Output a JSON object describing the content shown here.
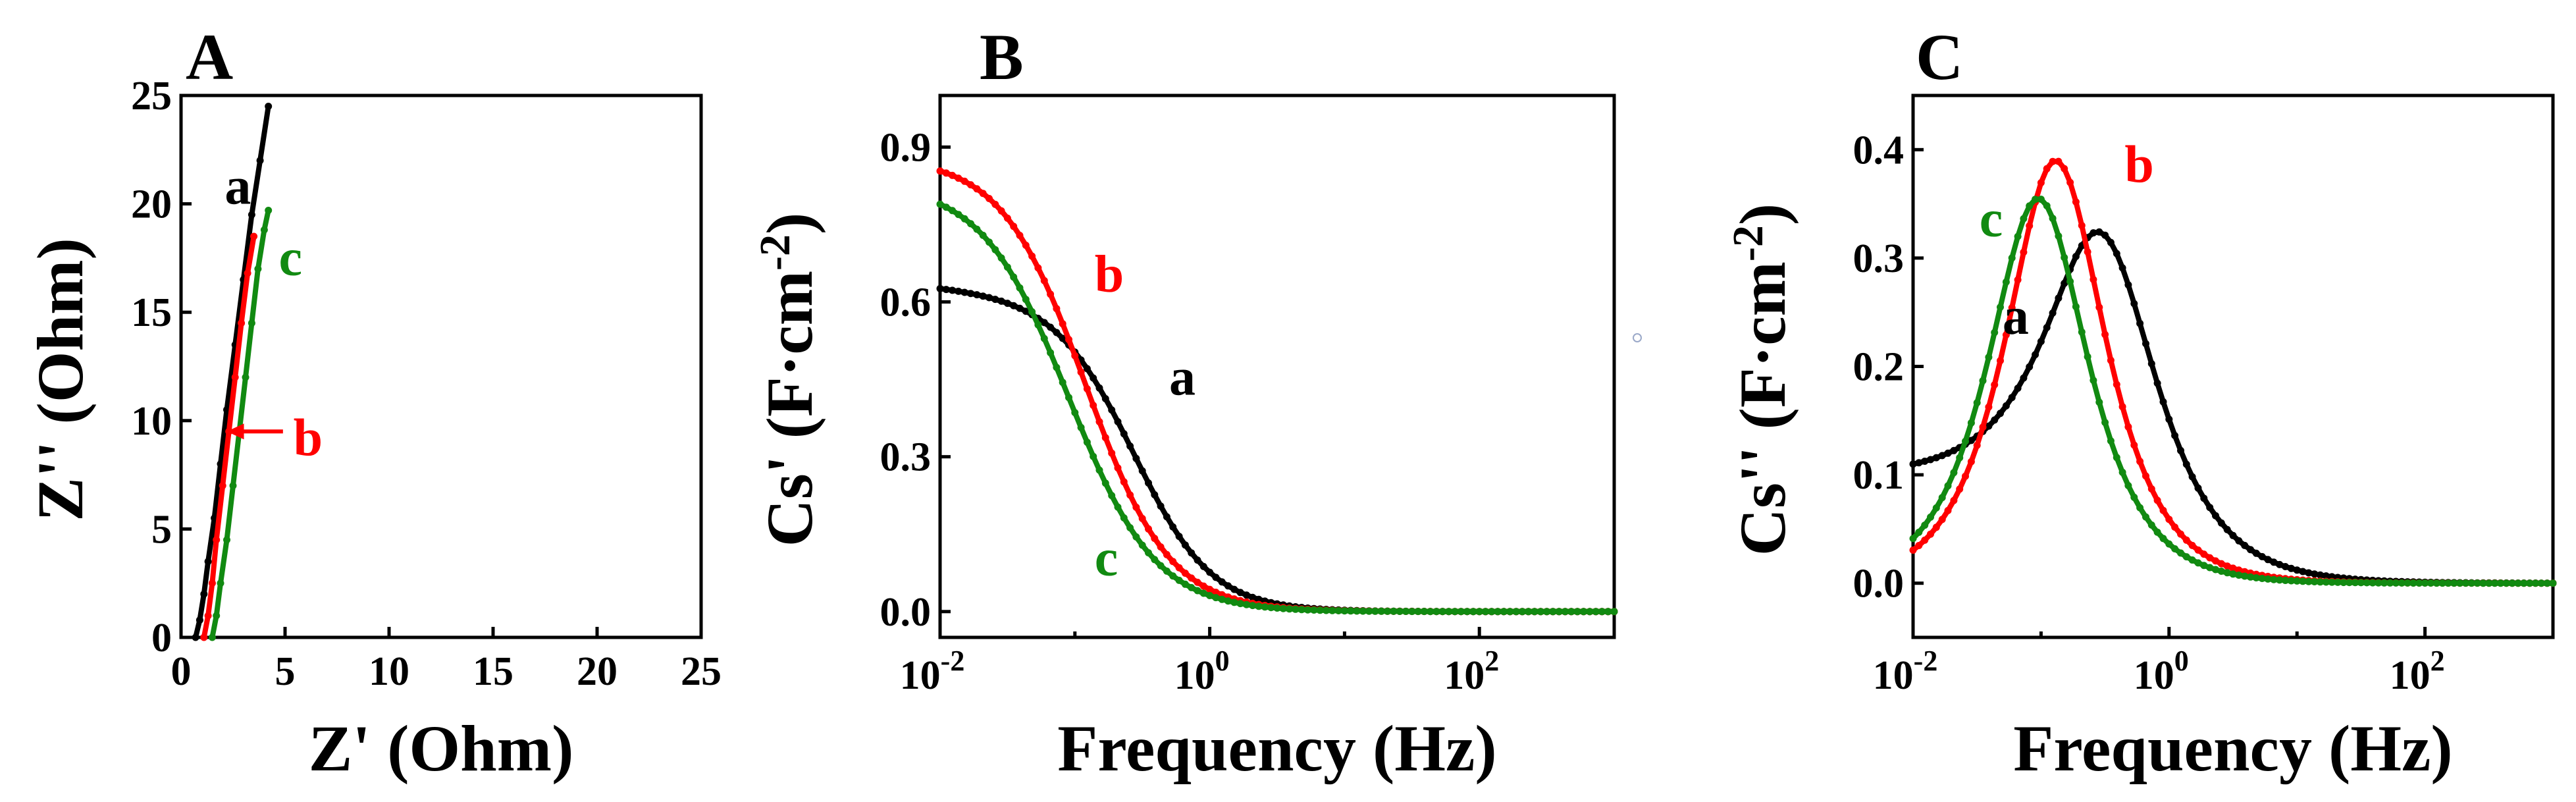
{
  "colors": {
    "a": "#000000",
    "b": "#ff0000",
    "c": "#118a11"
  },
  "chart_data": [
    {
      "panel": "A",
      "type": "line",
      "xlabel": "Z' (Ohm)",
      "ylabel": "Z'' (Ohm)",
      "xlim": [
        0,
        25
      ],
      "ylim": [
        0,
        25
      ],
      "xticks": [
        "0",
        "5",
        "10",
        "15",
        "20",
        "25"
      ],
      "yticks": [
        "0",
        "5",
        "10",
        "15",
        "20",
        "25"
      ],
      "series": [
        {
          "name": "a",
          "points": [
            [
              0.7,
              0
            ],
            [
              0.9,
              0.8
            ],
            [
              1.1,
              2
            ],
            [
              1.3,
              3.5
            ],
            [
              1.6,
              5.5
            ],
            [
              1.9,
              8
            ],
            [
              2.2,
              10.5
            ],
            [
              2.6,
              13.5
            ],
            [
              3.0,
              16.5
            ],
            [
              3.4,
              19.5
            ],
            [
              3.8,
              22
            ],
            [
              4.2,
              24.5
            ]
          ]
        },
        {
          "name": "b",
          "points": [
            [
              1.1,
              0
            ],
            [
              1.3,
              1
            ],
            [
              1.5,
              2.5
            ],
            [
              1.7,
              4.5
            ],
            [
              2.0,
              7
            ],
            [
              2.3,
              9.5
            ],
            [
              2.6,
              12
            ],
            [
              2.9,
              14.5
            ],
            [
              3.2,
              16.8
            ],
            [
              3.5,
              18.5
            ]
          ]
        },
        {
          "name": "c",
          "points": [
            [
              1.5,
              0
            ],
            [
              1.7,
              1
            ],
            [
              1.9,
              2.5
            ],
            [
              2.2,
              4.5
            ],
            [
              2.5,
              7
            ],
            [
              2.8,
              9.5
            ],
            [
              3.1,
              12
            ],
            [
              3.4,
              14.5
            ],
            [
              3.7,
              17
            ],
            [
              4.0,
              18.8
            ],
            [
              4.2,
              19.7
            ]
          ]
        }
      ],
      "labels": [
        {
          "series": "a",
          "text": "a",
          "at": [
            2.1,
            20
          ]
        },
        {
          "series": "c",
          "text": "c",
          "at": [
            4.7,
            16.7
          ]
        },
        {
          "series": "b",
          "text": "b",
          "at": [
            5.4,
            8.4
          ]
        }
      ],
      "arrow": {
        "series": "b",
        "from": [
          4.9,
          9.5
        ],
        "to": [
          2.2,
          9.5
        ]
      }
    },
    {
      "panel": "B",
      "type": "line",
      "xscale": "log",
      "xlabel": "Frequency (Hz)",
      "ylabel": "Cs' (F·cm⁻²)",
      "xlim": [
        0.01,
        1000
      ],
      "ylim": [
        -0.05,
        1.0
      ],
      "yticks": [
        "0.0",
        "0.3",
        "0.6",
        "0.9"
      ],
      "yticks_values": [
        0,
        0.3,
        0.6,
        0.9
      ],
      "xticks_values": [
        0.01,
        1,
        100
      ],
      "xticks": [
        {
          "base": "10",
          "exp": "-2"
        },
        {
          "base": "10",
          "exp": "0"
        },
        {
          "base": "10",
          "exp": "2"
        }
      ],
      "series": [
        {
          "name": "a",
          "model": {
            "high": 0.63,
            "low": 0.0,
            "f0": 0.28,
            "n": 1.5,
            "drift": 0.04
          }
        },
        {
          "name": "b",
          "model": {
            "high": 0.88,
            "low": 0.0,
            "f0": 0.12,
            "n": 1.4,
            "drift": 0.0
          }
        },
        {
          "name": "c",
          "model": {
            "high": 0.83,
            "low": 0.0,
            "f0": 0.09,
            "n": 1.35,
            "drift": 0.0
          }
        }
      ],
      "labels": [
        {
          "series": "b",
          "text": "b",
          "at": [
            0.14,
            0.62
          ]
        },
        {
          "series": "a",
          "text": "a",
          "at": [
            0.5,
            0.42
          ]
        },
        {
          "series": "c",
          "text": "c",
          "at": [
            0.14,
            0.07
          ]
        }
      ]
    },
    {
      "panel": "C",
      "type": "line",
      "xscale": "log",
      "xlabel": "Frequency (Hz)",
      "ylabel": "Cs'' (F·cm⁻²)",
      "xlim": [
        0.01,
        1000
      ],
      "ylim": [
        -0.05,
        0.45
      ],
      "yticks": [
        "0.0",
        "0.1",
        "0.2",
        "0.3",
        "0.4"
      ],
      "yticks_values": [
        0,
        0.1,
        0.2,
        0.3,
        0.4
      ],
      "xticks_values": [
        0.01,
        1,
        100
      ],
      "xticks": [
        {
          "base": "10",
          "exp": "-2"
        },
        {
          "base": "10",
          "exp": "0"
        },
        {
          "base": "10",
          "exp": "2"
        }
      ],
      "series": [
        {
          "name": "a",
          "model": {
            "peak": 0.285,
            "f0": 0.3,
            "width": 0.62,
            "base": 0.1
          }
        },
        {
          "name": "b",
          "model": {
            "peak": 0.39,
            "f0": 0.13,
            "width": 0.55,
            "base": 0.0
          }
        },
        {
          "name": "c",
          "model": {
            "peak": 0.355,
            "f0": 0.095,
            "width": 0.55,
            "base": 0.0
          }
        }
      ],
      "labels": [
        {
          "series": "b",
          "text": "b",
          "at": [
            0.45,
            0.37
          ]
        },
        {
          "series": "c",
          "text": "c",
          "at": [
            0.033,
            0.32
          ]
        },
        {
          "series": "a",
          "text": "a",
          "at": [
            0.05,
            0.23
          ]
        }
      ]
    }
  ]
}
